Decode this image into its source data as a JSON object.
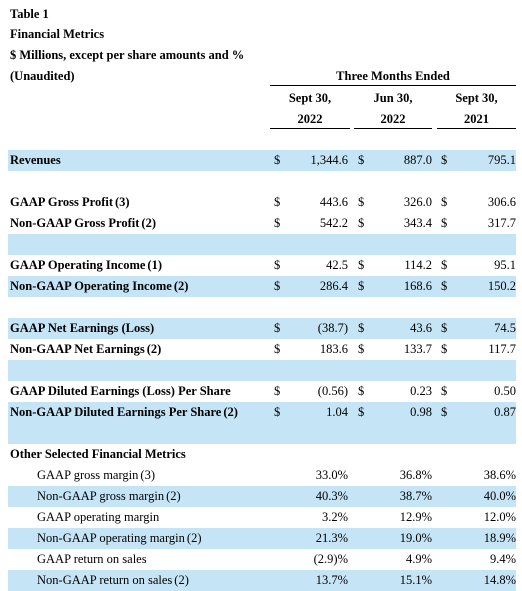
{
  "header": {
    "table_label": "Table 1",
    "title": "Financial Metrics",
    "units": "$ Millions, except per share amounts and %",
    "audit": "(Unaudited)",
    "period_group": "Three Months Ended"
  },
  "columns": [
    {
      "line1": "Sept 30,",
      "line2": "2022"
    },
    {
      "line1": "Jun 30,",
      "line2": "2022"
    },
    {
      "line1": "Sept 30,",
      "line2": "2021"
    }
  ],
  "currency_symbol": "$",
  "rows": [
    {
      "label": "Revenues",
      "note": "",
      "v": [
        "1,344.6",
        "887.0",
        "795.1"
      ]
    },
    {
      "label": "GAAP Gross Profit",
      "note": "(3)",
      "v": [
        "443.6",
        "326.0",
        "306.6"
      ]
    },
    {
      "label": "Non-GAAP Gross Profit",
      "note": "(2)",
      "v": [
        "542.2",
        "343.4",
        "317.7"
      ]
    },
    {
      "label": "GAAP Operating Income",
      "note": "(1)",
      "v": [
        "42.5",
        "114.2",
        "95.1"
      ]
    },
    {
      "label": "Non-GAAP Operating Income",
      "note": "(2)",
      "v": [
        "286.4",
        "168.6",
        "150.2"
      ]
    },
    {
      "label": "GAAP Net Earnings (Loss)",
      "note": "",
      "v": [
        "(38.7)",
        "43.6",
        "74.5"
      ]
    },
    {
      "label": "Non-GAAP Net Earnings",
      "note": "(2)",
      "v": [
        "183.6",
        "133.7",
        "117.7"
      ]
    },
    {
      "label": "GAAP Diluted Earnings (Loss) Per Share",
      "note": "",
      "v": [
        "(0.56)",
        "0.23",
        "0.50"
      ]
    },
    {
      "label": "Non-GAAP Diluted Earnings Per Share",
      "note": "(2)",
      "v": [
        "1.04",
        "0.98",
        "0.87"
      ]
    }
  ],
  "other_metrics": {
    "heading": "Other Selected Financial Metrics",
    "rows": [
      {
        "label": "GAAP gross margin",
        "note": "(3)",
        "v": [
          "33.0%",
          "36.8%",
          "38.6%"
        ]
      },
      {
        "label": "Non-GAAP gross margin",
        "note": "(2)",
        "v": [
          "40.3%",
          "38.7%",
          "40.0%"
        ]
      },
      {
        "label": "GAAP operating margin",
        "note": "",
        "v": [
          "3.2%",
          "12.9%",
          "12.0%"
        ]
      },
      {
        "label": "Non-GAAP operating margin",
        "note": "(2)",
        "v": [
          "21.3%",
          "19.0%",
          "18.9%"
        ]
      },
      {
        "label": "GAAP return on sales",
        "note": "",
        "v": [
          "(2.9)%",
          "4.9%",
          "9.4%"
        ]
      },
      {
        "label": "Non-GAAP return on sales",
        "note": "(2)",
        "v": [
          "13.7%",
          "15.1%",
          "14.8%"
        ]
      }
    ]
  }
}
